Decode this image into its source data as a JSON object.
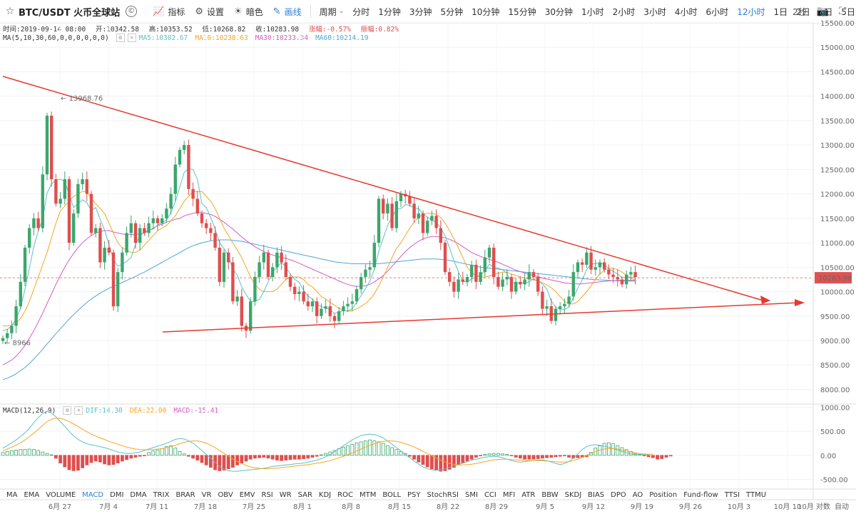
{
  "toolbar": {
    "symbol": "BTC/USDT 火币全球站",
    "info_icon": "©",
    "indicators_label": "指标",
    "settings_label": "设置",
    "theme_label": "暗色",
    "draw_label": "画线",
    "period_label": "周期",
    "timeframes": [
      "分时",
      "1分钟",
      "3分钟",
      "5分钟",
      "10分钟",
      "15分钟",
      "30分钟",
      "1小时",
      "2小时",
      "3小时",
      "4小时",
      "6小时",
      "12小时",
      "1日",
      "2日",
      "3日",
      "5日"
    ],
    "active_timeframe": "12小时",
    "interval_right": "2秒"
  },
  "ohlc": {
    "time": "时间:2019-09-14 08:00",
    "open": "开:10342.58",
    "high": "高:10353.52",
    "low": "低:10268.82",
    "close": "收:10283.98",
    "change": "涨幅:-0.57%",
    "amplitude": "振幅:0.82%"
  },
  "ma_info": {
    "label": "MA(5,10,30,60,0,0,0,0,0,0)",
    "ma5": "MA5:10302.67",
    "ma10": "MA10:10238.63",
    "ma30": "MA30:10233.34",
    "ma60": "MA60:10214.19"
  },
  "macd_info": {
    "label": "MACD(12,26,9)",
    "dif": "DIF:14.30",
    "dea": "DEA:22.00",
    "macd": "MACD:-15.41"
  },
  "indicators": [
    "MA",
    "EMA",
    "VOLUME",
    "MACD",
    "DMI",
    "DMA",
    "TRIX",
    "BRAR",
    "VR",
    "OBV",
    "EMV",
    "RSI",
    "WR",
    "SAR",
    "KDJ",
    "ROC",
    "MTM",
    "BOLL",
    "PSY",
    "StochRSI",
    "SMI",
    "CCI",
    "MFI",
    "ATR",
    "BBW",
    "SKDJ",
    "BIAS",
    "DPO",
    "AO",
    "Position",
    "Fund-flow",
    "TTSI",
    "TTMU"
  ],
  "active_indicator": "MACD",
  "axis_bottom_right": {
    "scale": "10月 对数",
    "auto": "自动"
  },
  "colors": {
    "up": "#3aa76d",
    "down": "#e04e4e",
    "ma5": "#5bc2c2",
    "ma10": "#f5a623",
    "ma30": "#d65cc4",
    "ma60": "#4aa8d8",
    "trend": "#e8382f",
    "price_tag": "#e05252"
  },
  "chart_data": [
    {
      "type": "candlestick",
      "title": "BTC/USDT 12h",
      "y_ticks": [
        8000,
        8500,
        9000,
        9500,
        10000,
        10500,
        11000,
        11500,
        12000,
        12500,
        13000,
        13500,
        14000,
        14500,
        15000,
        15500
      ],
      "ylim": [
        7700,
        15500
      ],
      "x_ticks": [
        "6月 27",
        "7月 4",
        "7月 11",
        "7月 18",
        "7月 25",
        "8月 1",
        "8月 8",
        "8月 15",
        "8月 22",
        "8月 29",
        "9月 5",
        "9月 12",
        "9月 19",
        "9月 26",
        "10月 3",
        "10月 10"
      ],
      "high_label": "13968.76",
      "low_label": "8966",
      "last_price": "10283.98",
      "closes": [
        9050,
        9150,
        9300,
        9700,
        10200,
        10900,
        11300,
        11500,
        11300,
        12400,
        13600,
        12300,
        11800,
        11900,
        12300,
        11000,
        11600,
        12200,
        12300,
        12000,
        11200,
        11300,
        10600,
        10900,
        10800,
        9700,
        10400,
        10800,
        11200,
        11400,
        11000,
        11300,
        11200,
        11400,
        11500,
        11400,
        11500,
        11700,
        12000,
        12600,
        12900,
        13000,
        12100,
        11900,
        11600,
        11400,
        11300,
        11200,
        10900,
        10200,
        10800,
        10600,
        9800,
        9900,
        9300,
        9200,
        9800,
        10300,
        10600,
        10800,
        10300,
        10500,
        10800,
        10600,
        10300,
        10100,
        9950,
        10000,
        9800,
        9700,
        9800,
        9500,
        9650,
        9700,
        9500,
        9400,
        9600,
        9700,
        9750,
        9800,
        10050,
        10300,
        10450,
        10500,
        11000,
        11900,
        11600,
        11800,
        11300,
        11850,
        12000,
        11950,
        11800,
        11500,
        11600,
        11200,
        11450,
        11550,
        11300,
        11000,
        10400,
        10200,
        10000,
        10250,
        10200,
        10300,
        10550,
        10200,
        10400,
        10700,
        10900,
        10300,
        10100,
        10250,
        10300,
        10000,
        10200,
        10150,
        10250,
        10400,
        10300,
        10000,
        9650,
        9700,
        9400,
        9650,
        9700,
        9750,
        9900,
        10400,
        10600,
        10550,
        10800,
        10450,
        10500,
        10600,
        10450,
        10350,
        10300,
        10250,
        10150,
        10350,
        10400,
        10300
      ],
      "ma5": [
        9200,
        9230,
        9300,
        9450,
        9660,
        10050,
        10480,
        10920,
        11240,
        11480,
        12020,
        12200,
        12280,
        12300,
        12260,
        11980,
        11720,
        11800,
        11880,
        11820,
        11660,
        11720,
        11480,
        11260,
        10960,
        10660,
        10520,
        10560,
        10620,
        10700,
        10970,
        11140,
        11220,
        11260,
        11280,
        11360,
        11420,
        11460,
        11620,
        11840,
        12140,
        12440,
        12520,
        12500,
        12300,
        11800,
        11720,
        11520,
        11280,
        11000,
        10880,
        10740,
        10460,
        10340,
        10100,
        9940,
        9800,
        9800,
        9840,
        10000,
        10200,
        10400,
        10500,
        10600,
        10500,
        10360,
        10250,
        10190,
        10030,
        9910,
        9850,
        9750,
        9690,
        9670,
        9630,
        9550,
        9590,
        9610,
        9600,
        9650,
        9780,
        9920,
        10060,
        10220,
        10460,
        10830,
        11090,
        11360,
        11520,
        11690,
        11700,
        11780,
        11770,
        11710,
        11700,
        11590,
        11520,
        11470,
        11410,
        11310,
        11140,
        10900,
        10630,
        10410,
        10220,
        10190,
        10260,
        10300,
        10330,
        10430,
        10560,
        10500,
        10480,
        10450,
        10370,
        10190,
        10170,
        10180,
        10180,
        10200,
        10260,
        10220,
        10160,
        10050,
        9810,
        9680,
        9640,
        9640,
        9680,
        9880,
        10070,
        10240,
        10450,
        10560,
        10580,
        10580,
        10560,
        10470,
        10420,
        10360,
        10290,
        10290,
        10290,
        10302
      ],
      "ma10": [
        9300,
        9300,
        9310,
        9360,
        9450,
        9600,
        9800,
        10050,
        10300,
        10550,
        10800,
        11100,
        11400,
        11650,
        11750,
        11850,
        11950,
        12000,
        12050,
        12050,
        11900,
        11800,
        11700,
        11600,
        11400,
        11200,
        11000,
        10900,
        10850,
        10800,
        10800,
        10850,
        10950,
        11050,
        11150,
        11250,
        11300,
        11350,
        11450,
        11550,
        11700,
        11850,
        11950,
        12050,
        12050,
        12050,
        11950,
        11850,
        11700,
        11500,
        11300,
        11150,
        11000,
        10850,
        10700,
        10500,
        10300,
        10150,
        10050,
        10000,
        10000,
        10000,
        10050,
        10150,
        10250,
        10300,
        10300,
        10300,
        10250,
        10150,
        10100,
        10000,
        9900,
        9850,
        9780,
        9720,
        9660,
        9620,
        9600,
        9610,
        9650,
        9700,
        9760,
        9840,
        9960,
        10120,
        10300,
        10500,
        10700,
        10880,
        11000,
        11150,
        11300,
        11420,
        11520,
        11580,
        11600,
        11600,
        11580,
        11520,
        11400,
        11250,
        11080,
        10900,
        10700,
        10500,
        10400,
        10320,
        10300,
        10300,
        10320,
        10350,
        10380,
        10400,
        10400,
        10360,
        10330,
        10300,
        10280,
        10260,
        10240,
        10220,
        10180,
        10140,
        10080,
        10000,
        9900,
        9800,
        9750,
        9750,
        9800,
        9900,
        10000,
        10120,
        10250,
        10360,
        10440,
        10480,
        10480,
        10450,
        10400,
        10330,
        10280,
        10238
      ],
      "ma30": [
        8500,
        8550,
        8600,
        8680,
        8780,
        8900,
        9050,
        9200,
        9380,
        9560,
        9760,
        9950,
        10150,
        10330,
        10500,
        10650,
        10780,
        10900,
        11000,
        11080,
        11150,
        11200,
        11230,
        11250,
        11250,
        11220,
        11200,
        11180,
        11170,
        11170,
        11170,
        11180,
        11200,
        11250,
        11300,
        11350,
        11380,
        11420,
        11450,
        11480,
        11500,
        11550,
        11580,
        11600,
        11620,
        11620,
        11600,
        11580,
        11540,
        11480,
        11420,
        11350,
        11280,
        11200,
        11120,
        11050,
        10980,
        10920,
        10870,
        10820,
        10780,
        10750,
        10720,
        10700,
        10680,
        10650,
        10620,
        10580,
        10540,
        10500,
        10460,
        10420,
        10380,
        10340,
        10300,
        10260,
        10220,
        10180,
        10150,
        10120,
        10110,
        10110,
        10120,
        10150,
        10200,
        10260,
        10330,
        10420,
        10520,
        10620,
        10720,
        10820,
        10900,
        10970,
        11030,
        11080,
        11110,
        11130,
        11130,
        11120,
        11100,
        11070,
        11030,
        10980,
        10920,
        10860,
        10800,
        10760,
        10720,
        10690,
        10660,
        10630,
        10600,
        10560,
        10520,
        10480,
        10440,
        10410,
        10380,
        10350,
        10330,
        10310,
        10280,
        10260,
        10240,
        10220,
        10200,
        10180,
        10170,
        10160,
        10160,
        10160,
        10170,
        10180,
        10190,
        10200,
        10210,
        10220,
        10225,
        10230,
        10232,
        10233,
        10233,
        10233
      ],
      "ma60": [
        8200,
        8230,
        8270,
        8320,
        8380,
        8450,
        8530,
        8620,
        8720,
        8820,
        8930,
        9030,
        9140,
        9240,
        9340,
        9440,
        9530,
        9620,
        9700,
        9780,
        9850,
        9910,
        9970,
        10020,
        10070,
        10110,
        10150,
        10190,
        10230,
        10270,
        10310,
        10360,
        10400,
        10450,
        10500,
        10550,
        10600,
        10650,
        10700,
        10750,
        10800,
        10850,
        10900,
        10940,
        10970,
        11000,
        11020,
        11040,
        11050,
        11060,
        11060,
        11060,
        11050,
        11040,
        11030,
        11010,
        10990,
        10970,
        10950,
        10930,
        10910,
        10890,
        10870,
        10850,
        10830,
        10810,
        10790,
        10770,
        10750,
        10730,
        10710,
        10690,
        10670,
        10650,
        10630,
        10610,
        10600,
        10590,
        10580,
        10570,
        10570,
        10570,
        10570,
        10570,
        10570,
        10570,
        10580,
        10590,
        10600,
        10610,
        10620,
        10630,
        10640,
        10650,
        10660,
        10670,
        10670,
        10670,
        10670,
        10660,
        10650,
        10640,
        10620,
        10600,
        10580,
        10560,
        10540,
        10520,
        10500,
        10490,
        10480,
        10470,
        10460,
        10450,
        10440,
        10430,
        10420,
        10410,
        10400,
        10390,
        10380,
        10370,
        10360,
        10350,
        10340,
        10330,
        10320,
        10310,
        10300,
        10290,
        10280,
        10270,
        10260,
        10250,
        10245,
        10240,
        10235,
        10230,
        10225,
        10220,
        10218,
        10216,
        10215,
        10214
      ]
    },
    {
      "type": "bar",
      "title": "MACD(12,26,9)",
      "y_ticks": [
        1000,
        500,
        0,
        -500
      ],
      "ylim": [
        -700,
        1050
      ],
      "hist": [
        60,
        80,
        95,
        110,
        120,
        125,
        130,
        120,
        100,
        70,
        40,
        10,
        -60,
        -160,
        -240,
        -300,
        -320,
        -310,
        -260,
        -200,
        -150,
        -120,
        -140,
        -180,
        -200,
        -190,
        -160,
        -120,
        -90,
        -60,
        -40,
        -20,
        -10,
        60,
        90,
        110,
        140,
        180,
        200,
        150,
        80,
        30,
        -20,
        -60,
        -100,
        -150,
        -200,
        -250,
        -300,
        -320,
        -310,
        -280,
        -250,
        -200,
        -160,
        -120,
        -80,
        -60,
        -50,
        -40,
        -60,
        -80,
        -100,
        -110,
        -100,
        -90,
        -80,
        -80,
        -70,
        -60,
        -40,
        -20,
        10,
        40,
        70,
        100,
        140,
        170,
        200,
        230,
        260,
        280,
        300,
        320,
        300,
        280,
        250,
        200,
        160,
        120,
        80,
        40,
        -20,
        -80,
        -140,
        -190,
        -240,
        -280,
        -310,
        -330,
        -320,
        -290,
        -250,
        -200,
        -160,
        -120,
        -80,
        -40,
        -10,
        20,
        30,
        40,
        40,
        30,
        20,
        -10,
        -40,
        -60,
        -80,
        -80,
        -80,
        -70,
        -60,
        -50,
        -40,
        -30,
        -20,
        -10,
        -40,
        -60,
        -50,
        -40,
        -30,
        60,
        150,
        200,
        250,
        260,
        240,
        200,
        160,
        120,
        80,
        40,
        20,
        -10,
        -30,
        -50,
        -80,
        -70,
        -40,
        -15
      ],
      "dif": [
        150,
        200,
        260,
        320,
        390,
        470,
        560,
        680,
        780,
        870,
        920,
        880,
        800,
        700,
        600,
        500,
        400,
        330,
        280,
        240,
        220,
        200,
        180,
        160,
        130,
        100,
        70,
        50,
        40,
        40,
        50,
        70,
        100,
        130,
        160,
        190,
        220,
        250,
        290,
        330,
        350,
        340,
        300,
        250,
        180,
        100,
        20,
        -60,
        -150,
        -230,
        -290,
        -320,
        -330,
        -330,
        -320,
        -310,
        -300,
        -290,
        -280,
        -270,
        -250,
        -230,
        -220,
        -210,
        -200,
        -190,
        -180,
        -170,
        -160,
        -140,
        -120,
        -100,
        -70,
        -30,
        20,
        80,
        140,
        200,
        260,
        320,
        370,
        410,
        430,
        440,
        430,
        400,
        360,
        300,
        230,
        160,
        90,
        20,
        -50,
        -120,
        -180,
        -240,
        -280,
        -300,
        -310,
        -300,
        -280,
        -250,
        -220,
        -190,
        -160,
        -130,
        -100,
        -80,
        -60,
        -40,
        -30,
        -20,
        -30,
        -50,
        -80,
        -110,
        -130,
        -140,
        -130,
        -120,
        -110,
        -100,
        -100,
        -110,
        -140,
        -170,
        -190,
        -170,
        -130,
        -60,
        30,
        120,
        180,
        210,
        220,
        210,
        190,
        170,
        140,
        110,
        80,
        50,
        30,
        20,
        15,
        15,
        14
      ],
      "dea": [
        100,
        130,
        170,
        210,
        260,
        320,
        390,
        460,
        540,
        620,
        700,
        750,
        770,
        770,
        740,
        700,
        650,
        600,
        540,
        490,
        440,
        400,
        360,
        330,
        290,
        260,
        230,
        200,
        170,
        150,
        130,
        120,
        115,
        115,
        120,
        130,
        140,
        160,
        180,
        210,
        240,
        270,
        290,
        300,
        300,
        280,
        250,
        210,
        160,
        100,
        40,
        -20,
        -80,
        -130,
        -170,
        -210,
        -240,
        -260,
        -270,
        -280,
        -280,
        -270,
        -265,
        -255,
        -245,
        -235,
        -225,
        -215,
        -205,
        -195,
        -180,
        -165,
        -150,
        -130,
        -110,
        -80,
        -50,
        -20,
        10,
        50,
        90,
        130,
        170,
        210,
        240,
        270,
        290,
        300,
        300,
        290,
        270,
        240,
        210,
        170,
        130,
        80,
        40,
        -10,
        -60,
        -100,
        -140,
        -170,
        -190,
        -200,
        -200,
        -195,
        -185,
        -170,
        -150,
        -130,
        -110,
        -95,
        -85,
        -80,
        -82,
        -88,
        -95,
        -100,
        -105,
        -108,
        -110,
        -110,
        -112,
        -118,
        -125,
        -135,
        -140,
        -140,
        -130,
        -110,
        -80,
        -40,
        0,
        40,
        80,
        110,
        130,
        140,
        140,
        130,
        110,
        90,
        70,
        50,
        35,
        28,
        24,
        22
      ]
    }
  ]
}
